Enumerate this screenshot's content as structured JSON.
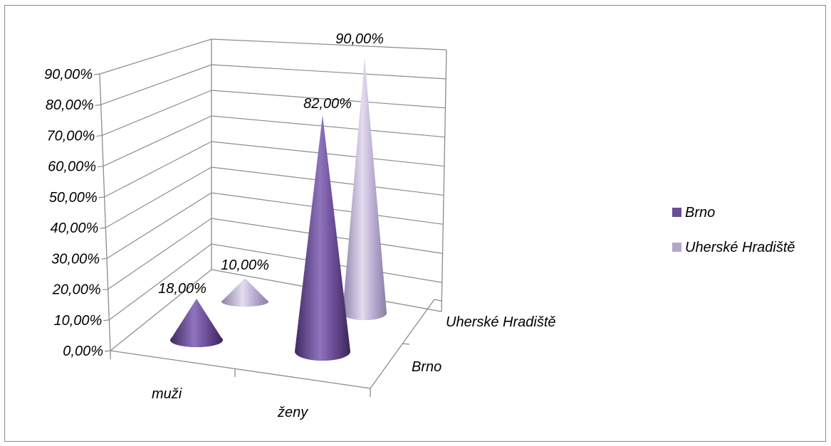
{
  "chart_data": {
    "type": "bar",
    "shape": "cone",
    "categories": [
      "muži",
      "ženy"
    ],
    "depth_categories": [
      "Brno",
      "Uherské Hradiště"
    ],
    "series": [
      {
        "name": "Brno",
        "values": [
          18,
          82
        ],
        "labels": [
          "18,00%",
          "82,00%"
        ],
        "color": "#6b4c96"
      },
      {
        "name": "Uherské Hradiště",
        "values": [
          10,
          90
        ],
        "labels": [
          "10,00%",
          "90,00%"
        ],
        "color": "#b3a6cc"
      }
    ],
    "y_ticks": [
      "0,00%",
      "10,00%",
      "20,00%",
      "30,00%",
      "40,00%",
      "50,00%",
      "60,00%",
      "70,00%",
      "80,00%",
      "90,00%"
    ],
    "ylim": [
      0,
      90
    ],
    "grid": true,
    "legend_position": "right"
  }
}
